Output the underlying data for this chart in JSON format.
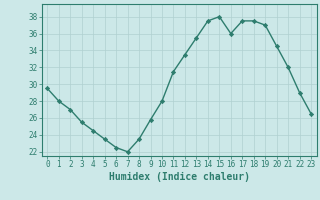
{
  "x": [
    0,
    1,
    2,
    3,
    4,
    5,
    6,
    7,
    8,
    9,
    10,
    11,
    12,
    13,
    14,
    15,
    16,
    17,
    18,
    19,
    20,
    21,
    22,
    23
  ],
  "y": [
    29.5,
    28.0,
    27.0,
    25.5,
    24.5,
    23.5,
    22.5,
    22.0,
    23.5,
    25.8,
    28.0,
    31.5,
    33.5,
    35.5,
    37.5,
    38.0,
    36.0,
    37.5,
    37.5,
    37.0,
    34.5,
    32.0,
    29.0,
    26.5
  ],
  "line_color": "#2e7d6e",
  "marker": "D",
  "marker_size": 2.2,
  "bg_color": "#cce8e8",
  "grid_color": "#b0d0d0",
  "axis_color": "#2e7d6e",
  "xlabel": "Humidex (Indice chaleur)",
  "xlim": [
    -0.5,
    23.5
  ],
  "ylim": [
    21.5,
    39.5
  ],
  "yticks": [
    22,
    24,
    26,
    28,
    30,
    32,
    34,
    36,
    38
  ],
  "xticks": [
    0,
    1,
    2,
    3,
    4,
    5,
    6,
    7,
    8,
    9,
    10,
    11,
    12,
    13,
    14,
    15,
    16,
    17,
    18,
    19,
    20,
    21,
    22,
    23
  ],
  "tick_label_fontsize": 5.5,
  "xlabel_fontsize": 7.0
}
